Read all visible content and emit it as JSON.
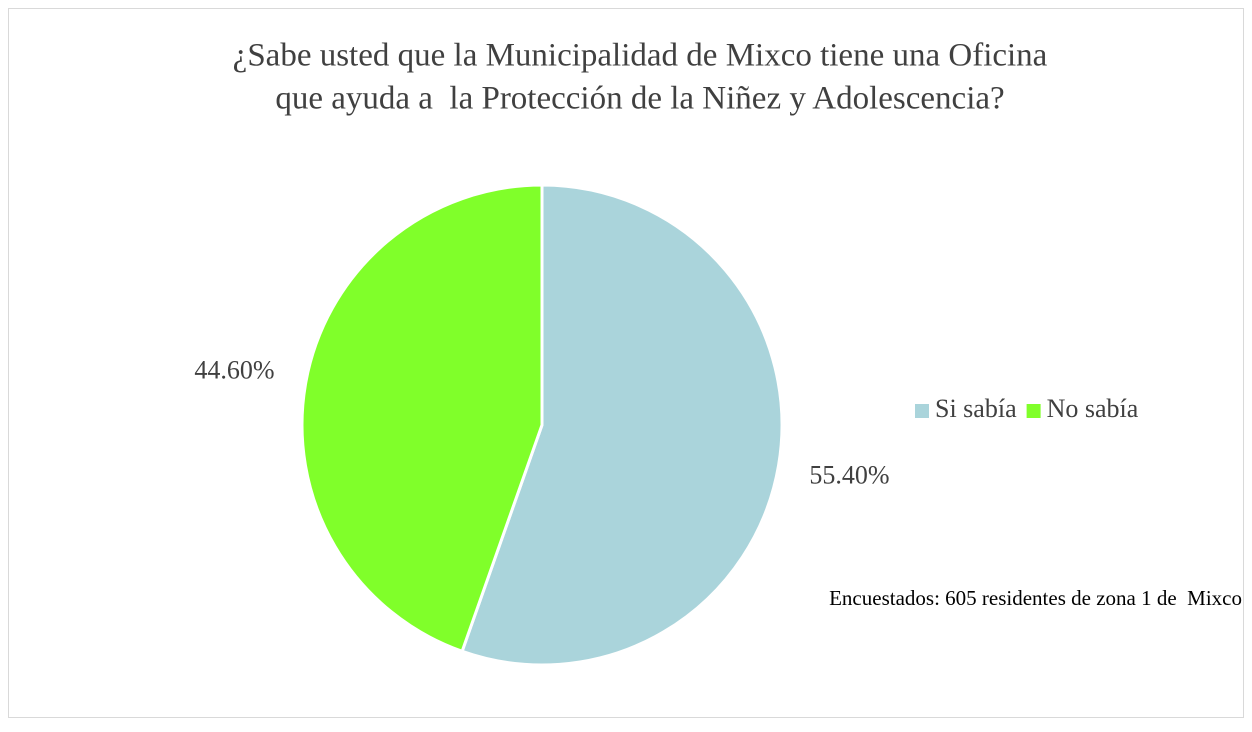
{
  "chart_data": {
    "type": "pie",
    "title": [
      "¿Sabe usted que la Municipalidad de Mixco tiene una Oficina",
      "que ayuda a  la Protección de la Niñez y Adolescencia?"
    ],
    "categories": [
      "Si sabía",
      "No sabía"
    ],
    "values": [
      55.4,
      44.6
    ],
    "value_labels": [
      "55.40%",
      "44.60%"
    ],
    "colors": [
      "#aad4db",
      "#80ff2a"
    ],
    "annotation": "Encuestados: 605 residentes de zona 1 de  Mixco",
    "legend": "right"
  }
}
